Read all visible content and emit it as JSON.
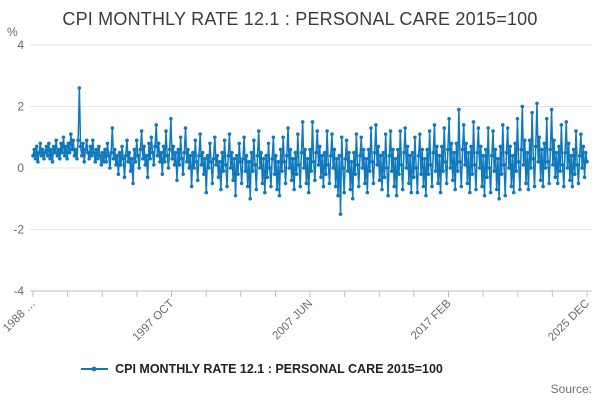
{
  "chart": {
    "title": "CPI MONTHLY RATE 12.1 : PERSONAL CARE 2015=100",
    "legend_label": "CPI MONTHLY RATE 12.1 : PERSONAL CARE 2015=100",
    "source_label": "Source:"
  },
  "chart_data": {
    "type": "line",
    "title": "CPI MONTHLY RATE 12.1 : PERSONAL CARE 2015=100",
    "xlabel": "",
    "ylabel": "%",
    "ylim": [
      -4,
      4
    ],
    "y_ticks": [
      4,
      2,
      0,
      -2,
      -4
    ],
    "grid": true,
    "legend_position": "bottom",
    "x_axis": {
      "frequency": "monthly",
      "start": "1988 FEB",
      "end": "2025 DEC",
      "minor_tick_count": 17,
      "tick_labels": [
        "1988 …",
        "1997 OCT",
        "2007 JUN",
        "2017 FEB",
        "2025 DEC"
      ],
      "labeled_tick_indices": [
        0,
        4,
        8,
        12,
        16
      ]
    },
    "colors": {
      "line": "#1079bd",
      "grid": "#e4e4e4",
      "axis": "#b4bfcc",
      "tick_text": "#6b6b6b"
    },
    "series": [
      {
        "name": "CPI MONTHLY RATE 12.1 : PERSONAL CARE 2015=100",
        "color": "#1079bd",
        "marker": "circle",
        "values": [
          0.4,
          0.6,
          0.3,
          0.7,
          0.2,
          0.5,
          0.8,
          0.4,
          0.6,
          0.3,
          0.5,
          0.7,
          0.4,
          0.8,
          0.3,
          0.6,
          0.2,
          0.7,
          0.5,
          0.9,
          0.4,
          0.6,
          0.3,
          0.8,
          0.5,
          1.0,
          0.4,
          0.7,
          0.3,
          0.8,
          0.5,
          1.1,
          0.6,
          0.9,
          0.4,
          0.6,
          0.3,
          0.9,
          2.6,
          0.7,
          0.4,
          0.8,
          0.2,
          0.6,
          0.9,
          0.5,
          0.3,
          0.7,
          0.4,
          0.9,
          0.5,
          0.2,
          0.6,
          0.3,
          0.7,
          0.4,
          0.1,
          0.5,
          0.2,
          0.6,
          0.2,
          0.8,
          0.4,
          0.0,
          0.5,
          1.3,
          0.3,
          0.6,
          0.1,
          0.4,
          -0.2,
          0.5,
          0.1,
          0.7,
          0.3,
          -0.3,
          0.4,
          0.9,
          0.2,
          0.5,
          -0.1,
          0.3,
          -0.5,
          0.6,
          0.2,
          0.9,
          0.4,
          0.0,
          0.6,
          1.2,
          0.3,
          0.7,
          0.1,
          0.4,
          -0.3,
          0.8,
          0.3,
          1.0,
          0.5,
          0.1,
          0.7,
          1.4,
          0.4,
          0.8,
          0.2,
          0.5,
          -0.2,
          0.7,
          0.2,
          1.2,
          0.4,
          0.0,
          0.6,
          1.6,
          0.3,
          0.7,
          0.1,
          0.5,
          -0.4,
          0.6,
          0.1,
          1.0,
          0.3,
          -0.2,
          0.5,
          1.3,
          0.2,
          0.6,
          0.0,
          0.4,
          -0.6,
          0.5,
          0.0,
          0.9,
          0.2,
          -0.4,
          0.4,
          1.1,
          0.1,
          0.5,
          -0.2,
          0.3,
          -0.8,
          0.4,
          0.0,
          0.8,
          0.2,
          -0.5,
          0.3,
          1.0,
          0.1,
          0.4,
          -0.3,
          0.2,
          -0.7,
          0.5,
          -0.1,
          0.9,
          0.1,
          -0.6,
          0.4,
          1.1,
          0.0,
          0.5,
          -0.4,
          0.3,
          -0.9,
          0.4,
          -0.2,
          0.8,
          0.2,
          -0.5,
          0.3,
          1.0,
          -0.1,
          0.4,
          -0.6,
          0.2,
          -1.0,
          0.5,
          -0.1,
          0.9,
          0.1,
          -0.7,
          0.4,
          1.2,
          0.0,
          0.5,
          -0.5,
          0.3,
          -0.8,
          0.4,
          -0.3,
          0.8,
          0.0,
          -0.6,
          0.3,
          1.0,
          -0.2,
          0.4,
          -0.7,
          0.2,
          -0.9,
          0.6,
          -0.1,
          1.0,
          0.2,
          -0.5,
          0.4,
          1.3,
          0.0,
          0.6,
          -0.4,
          0.3,
          -0.7,
          0.5,
          -0.2,
          1.1,
          0.1,
          -0.6,
          0.5,
          1.5,
          0.0,
          0.6,
          -0.5,
          0.3,
          -0.8,
          0.6,
          -0.1,
          1.5,
          0.2,
          -0.4,
          0.5,
          1.2,
          0.1,
          0.7,
          -0.3,
          0.4,
          -0.6,
          0.5,
          -0.2,
          1.2,
          0.1,
          -0.5,
          0.4,
          1.1,
          0.0,
          0.6,
          -0.6,
          0.3,
          -0.9,
          0.4,
          -1.5,
          1.0,
          0.0,
          -0.8,
          0.3,
          0.9,
          -0.1,
          0.5,
          -0.7,
          0.2,
          -1.0,
          0.5,
          -0.2,
          1.1,
          0.1,
          -0.6,
          0.4,
          1.0,
          0.0,
          0.6,
          -0.5,
          0.3,
          -0.8,
          0.6,
          -0.1,
          1.3,
          0.2,
          -0.5,
          0.5,
          1.4,
          0.1,
          0.7,
          -0.4,
          0.4,
          -0.7,
          0.5,
          -0.3,
          1.1,
          0.0,
          -0.9,
          0.4,
          1.2,
          -0.1,
          0.6,
          -0.6,
          0.3,
          -0.9,
          0.6,
          -0.2,
          1.2,
          0.1,
          -0.7,
          0.5,
          1.3,
          0.0,
          0.7,
          -0.5,
          0.4,
          -0.8,
          0.5,
          -0.3,
          1.0,
          0.0,
          -0.8,
          0.4,
          1.1,
          -0.2,
          0.6,
          -0.6,
          0.3,
          -0.9,
          0.6,
          -0.2,
          1.2,
          0.1,
          -0.6,
          0.5,
          1.4,
          -0.1,
          0.7,
          -0.5,
          0.4,
          -0.8,
          0.7,
          -0.1,
          1.3,
          0.2,
          -0.5,
          0.6,
          1.6,
          0.0,
          0.8,
          -0.4,
          0.5,
          -0.7,
          0.8,
          -0.1,
          1.9,
          0.2,
          -0.6,
          0.6,
          1.4,
          0.1,
          0.8,
          -0.5,
          0.5,
          -0.8,
          0.7,
          -0.2,
          1.5,
          0.1,
          -0.7,
          0.5,
          1.3,
          0.0,
          0.7,
          -0.6,
          0.4,
          -0.9,
          0.6,
          -0.3,
          1.3,
          0.0,
          -0.8,
          0.4,
          1.2,
          -0.1,
          0.6,
          -0.7,
          0.3,
          -1.0,
          0.7,
          -0.2,
          1.4,
          0.1,
          -0.9,
          0.5,
          1.3,
          0.0,
          0.7,
          -0.6,
          0.4,
          -0.8,
          0.8,
          -0.1,
          1.6,
          0.2,
          -0.7,
          0.6,
          2.0,
          0.1,
          0.9,
          -0.5,
          0.5,
          -0.7,
          0.9,
          0.0,
          1.8,
          0.3,
          -0.6,
          0.7,
          2.1,
          0.2,
          1.0,
          -0.4,
          0.6,
          -0.6,
          0.8,
          0.0,
          1.6,
          0.2,
          -0.5,
          0.6,
          1.9,
          0.1,
          0.9,
          -0.3,
          0.5,
          -0.5,
          0.7,
          -0.1,
          1.4,
          0.1,
          -0.6,
          0.5,
          1.5,
          0.0,
          0.8,
          -0.4,
          0.4,
          -0.6,
          0.6,
          -0.2,
          1.2,
          0.1,
          -0.5,
          0.4,
          1.1,
          0.0,
          0.7,
          -0.3,
          0.5,
          0.2
        ]
      }
    ]
  }
}
